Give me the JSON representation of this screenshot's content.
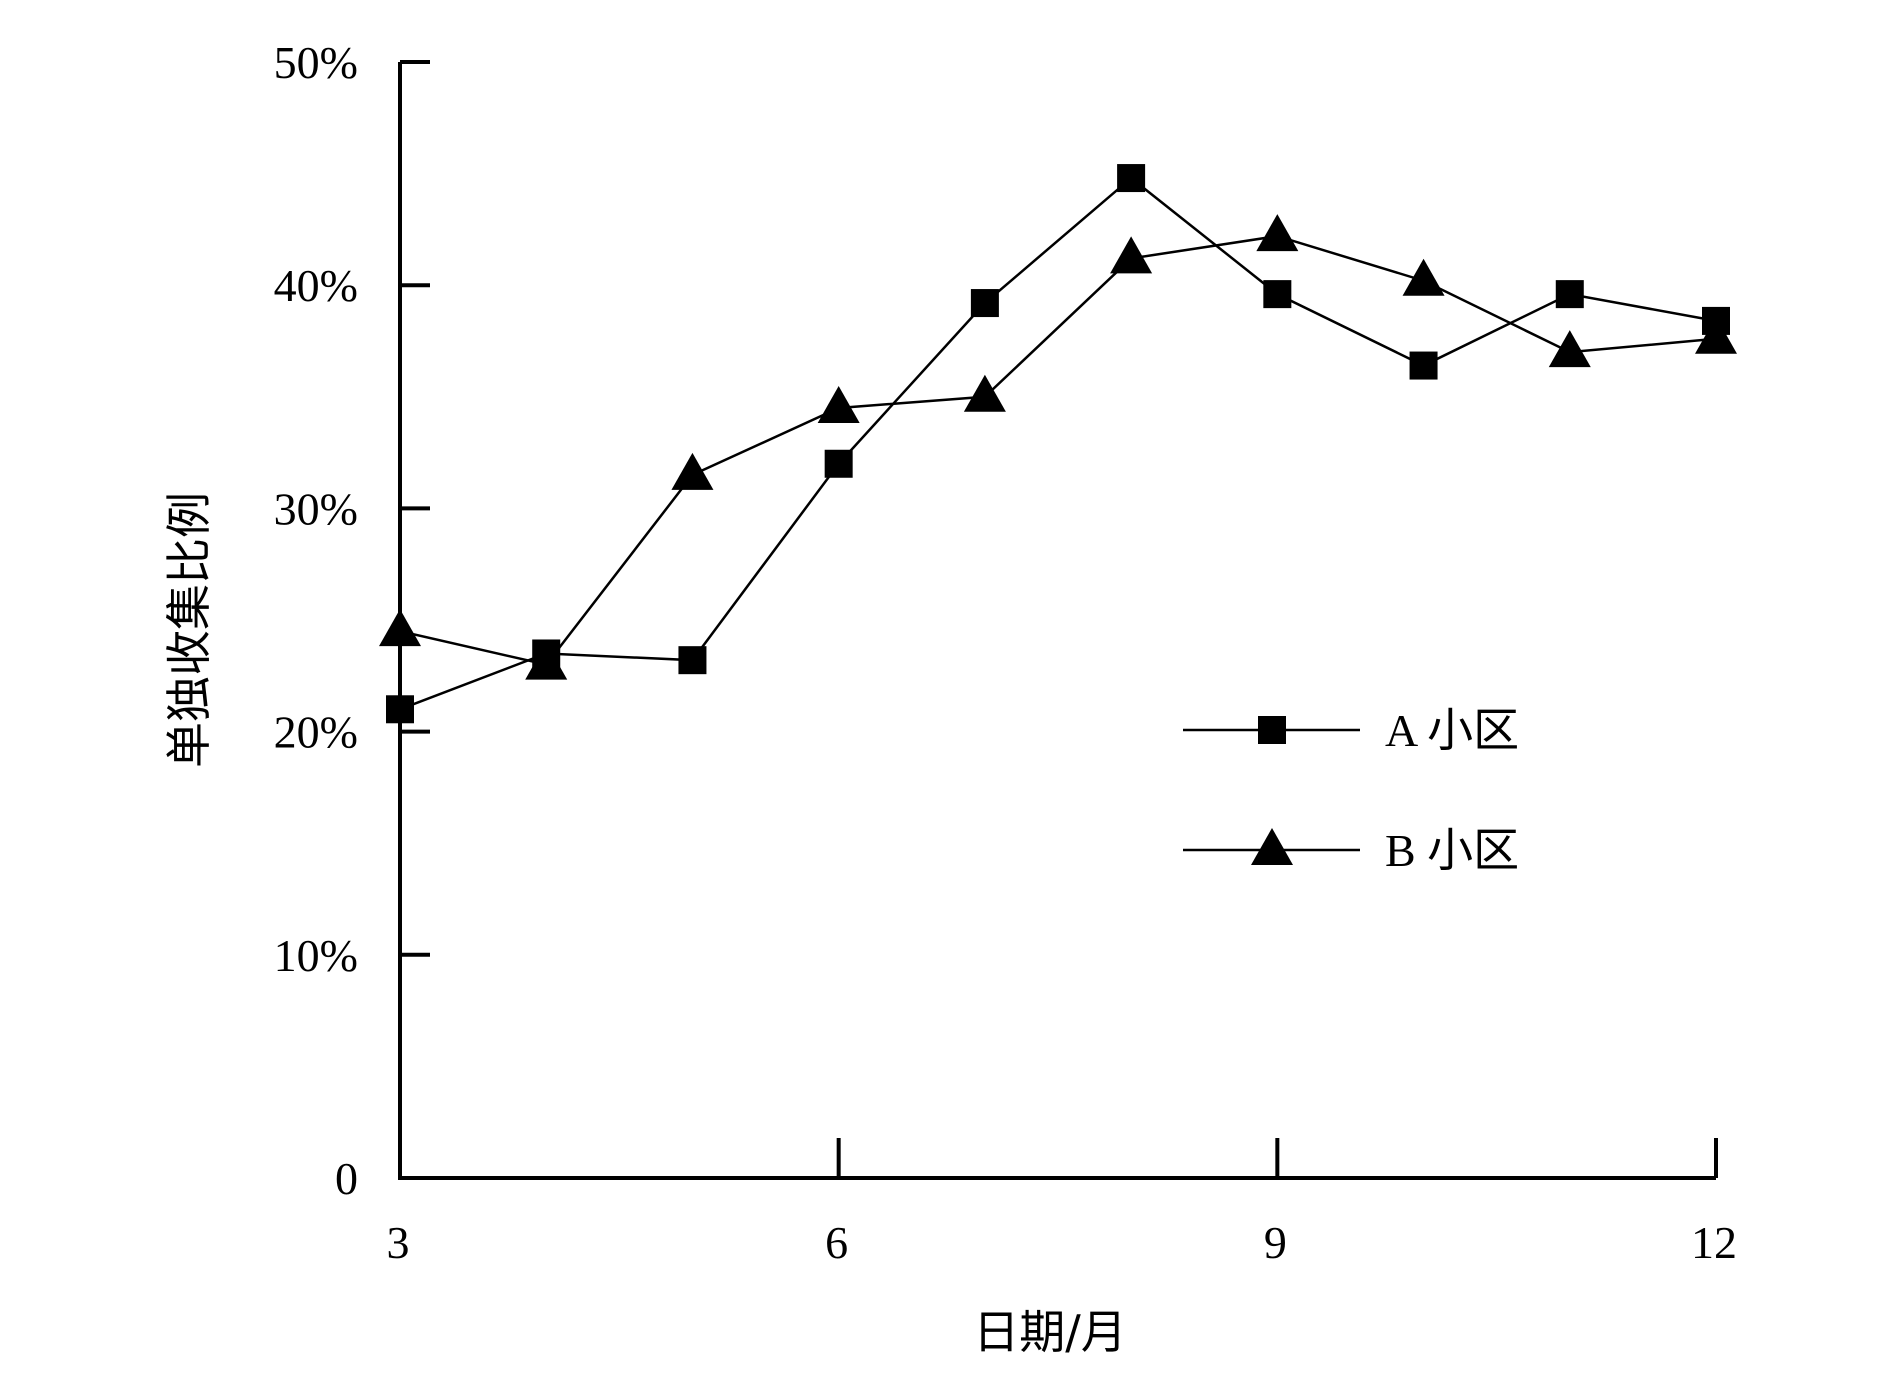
{
  "chart_data": {
    "type": "line",
    "title": "",
    "xlabel": "日期/月",
    "ylabel": "单独收集比例",
    "xlim": [
      3,
      12
    ],
    "ylim": [
      0,
      50
    ],
    "x_ticks": [
      3,
      6,
      9,
      12
    ],
    "x_tick_labels": [
      "3",
      "6",
      "9",
      "12"
    ],
    "y_ticks": [
      0,
      10,
      20,
      30,
      40,
      50
    ],
    "y_tick_labels": [
      "0",
      "10%",
      "20%",
      "30%",
      "40%",
      "50%"
    ],
    "grid": false,
    "legend_position": "center-right",
    "x": [
      3,
      4,
      5,
      6,
      7,
      8,
      9,
      10,
      11,
      12
    ],
    "series": [
      {
        "name": "A 小区",
        "marker": "square",
        "values": [
          21.0,
          23.5,
          23.2,
          32.0,
          39.2,
          44.8,
          39.6,
          36.4,
          39.6,
          38.4
        ]
      },
      {
        "name": "B 小区",
        "marker": "triangle",
        "values": [
          24.5,
          23.0,
          31.5,
          34.5,
          35.0,
          41.2,
          42.2,
          40.2,
          37.0,
          37.6
        ]
      }
    ],
    "colors": {
      "line": "#000000",
      "marker": "#000000"
    }
  }
}
